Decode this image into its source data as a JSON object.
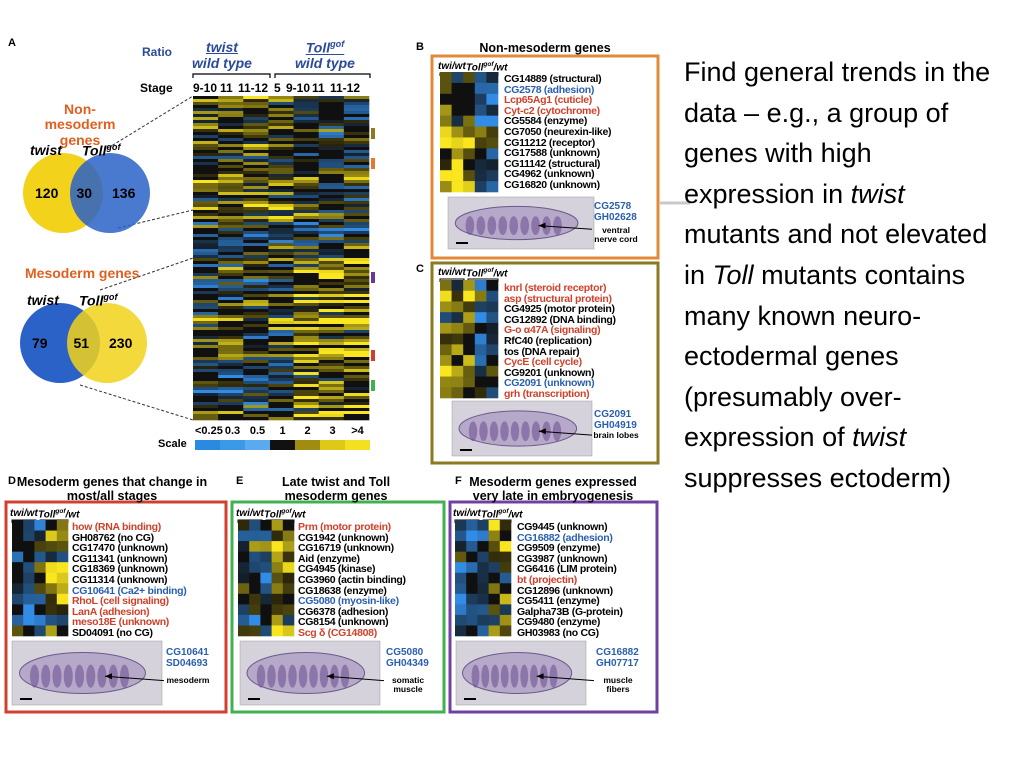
{
  "panel_a": {
    "label": "A",
    "ratio": "Ratio",
    "groups": [
      {
        "name": "twist",
        "sub": "wild type"
      },
      {
        "name": "Toll",
        "sup": "gof",
        "sub": "wild type"
      }
    ],
    "stage": "Stage",
    "stages": [
      "9-10",
      "11",
      "11-12",
      "5",
      "9-10",
      "11",
      "11-12"
    ],
    "venns": [
      {
        "title": "Non-mesoderm genes",
        "left": "twist",
        "right": "Toll",
        "right_sup": "gof",
        "counts": [
          120,
          30,
          136
        ]
      },
      {
        "title": "Mesoderm genes",
        "left": "twist",
        "right": "Toll",
        "right_sup": "gof",
        "counts": [
          79,
          51,
          230
        ]
      }
    ],
    "scale": {
      "label": "Scale",
      "ticks": [
        "<0.25",
        "0.3",
        "0.5",
        "1",
        "2",
        "3",
        ">4"
      ]
    }
  },
  "panels": [
    {
      "label": "B",
      "title": "Non-mesoderm genes",
      "col1": "twi/wt",
      "col2": "Toll",
      "col2_sup": "gof",
      "col2_tail": "/wt",
      "genes": [
        {
          "text": "CG14889 (structural)",
          "color": "#000000"
        },
        {
          "text": "CG2578 (adhesion)",
          "color": "#2a5fb0"
        },
        {
          "text": "Lcp65Ag1 (cuticle)",
          "color": "#d0402a"
        },
        {
          "text": "Cyt-c2 (cytochrome)",
          "color": "#d0402a"
        },
        {
          "text": "CG5584 (enzyme)",
          "color": "#000000"
        },
        {
          "text": "CG7050 (neurexin-like)",
          "color": "#000000"
        },
        {
          "text": "CG11212 (receptor)",
          "color": "#000000"
        },
        {
          "text": "CG17588 (unknown)",
          "color": "#000000"
        },
        {
          "text": "CG11142 (structural)",
          "color": "#000000"
        },
        {
          "text": "CG4962 (unknown)",
          "color": "#000000"
        },
        {
          "text": "CG16820 (unknown)",
          "color": "#000000"
        }
      ],
      "image_ids": [
        "CG2578",
        "GH02628"
      ],
      "image_note": "ventral nerve cord"
    },
    {
      "label": "C",
      "col1": "twi/wt",
      "col2": "Toll",
      "col2_sup": "gof",
      "col2_tail": "/wt",
      "genes": [
        {
          "text": "knrl (steroid receptor)",
          "color": "#d0402a"
        },
        {
          "text": "asp (structural protein)",
          "color": "#d0402a"
        },
        {
          "text": "CG4925 (motor protein)",
          "color": "#000000"
        },
        {
          "text": "CG12892 (DNA binding)",
          "color": "#000000"
        },
        {
          "text": "G-o α47A (signaling)",
          "color": "#d0402a"
        },
        {
          "text": "RfC40 (replication)",
          "color": "#000000"
        },
        {
          "text": "tos (DNA repair)",
          "color": "#000000"
        },
        {
          "text": "CycE (cell cycle)",
          "color": "#d0402a"
        },
        {
          "text": "CG9201 (unknown)",
          "color": "#000000"
        },
        {
          "text": "CG2091 (unknown)",
          "color": "#2a5fb0"
        },
        {
          "text": "grh (transcription)",
          "color": "#d0402a"
        }
      ],
      "image_ids": [
        "CG2091",
        "GH04919"
      ],
      "image_note": "brain lobes"
    },
    {
      "label": "D",
      "title": "Mesoderm genes that change in most/all stages",
      "col1": "twi/wt",
      "col2": "Toll",
      "col2_sup": "gof",
      "col2_tail": "/wt",
      "genes": [
        {
          "text": "how (RNA binding)",
          "color": "#d0402a"
        },
        {
          "text": "GH08762 (no CG)",
          "color": "#000000"
        },
        {
          "text": "CG17470 (unknown)",
          "color": "#000000"
        },
        {
          "text": "CG11341 (unknown)",
          "color": "#000000"
        },
        {
          "text": "CG18369 (unknown)",
          "color": "#000000"
        },
        {
          "text": "CG11314 (unknown)",
          "color": "#000000"
        },
        {
          "text": "CG10641 (Ca2+ binding)",
          "color": "#2a5fb0"
        },
        {
          "text": "RhoL (cell signaling)",
          "color": "#d0402a"
        },
        {
          "text": "LanA (adhesion)",
          "color": "#d0402a"
        },
        {
          "text": "meso18E (unknown)",
          "color": "#d0402a"
        },
        {
          "text": "SD04091 (no CG)",
          "color": "#000000"
        }
      ],
      "image_ids": [
        "CG10641",
        "SD04693"
      ],
      "image_note": "mesoderm"
    },
    {
      "label": "E",
      "title": "Late twist and Toll mesoderm genes",
      "col1": "twi/wt",
      "col2": "Toll",
      "col2_sup": "gof",
      "col2_tail": "/wt",
      "genes": [
        {
          "text": "Prm (motor protein)",
          "color": "#d0402a"
        },
        {
          "text": "CG1942 (unknown)",
          "color": "#000000"
        },
        {
          "text": "CG16719 (unknown)",
          "color": "#000000"
        },
        {
          "text": "Aid (enzyme)",
          "color": "#000000"
        },
        {
          "text": "CG4945 (kinase)",
          "color": "#000000"
        },
        {
          "text": "CG3960 (actin binding)",
          "color": "#000000"
        },
        {
          "text": "CG18638 (enzyme)",
          "color": "#000000"
        },
        {
          "text": "CG5080 (myosin-like)",
          "color": "#2a5fb0"
        },
        {
          "text": "CG6378 (adhesion)",
          "color": "#000000"
        },
        {
          "text": "CG8154 (unknown)",
          "color": "#000000"
        },
        {
          "text": "Scg δ (CG14808)",
          "color": "#d0402a"
        }
      ],
      "image_ids": [
        "CG5080",
        "GH04349"
      ],
      "image_note": "somatic muscle"
    },
    {
      "label": "F",
      "title": "Mesoderm genes expressed very late in embryogenesis",
      "col1": "twi/wt",
      "col2": "Toll",
      "col2_sup": "gof",
      "col2_tail": "/wt",
      "genes": [
        {
          "text": "CG9445 (unknown)",
          "color": "#000000"
        },
        {
          "text": "CG16882 (adhesion)",
          "color": "#2a5fb0"
        },
        {
          "text": "CG9509 (enzyme)",
          "color": "#000000"
        },
        {
          "text": "CG3987 (unknown)",
          "color": "#000000"
        },
        {
          "text": "CG6416 (LIM protein)",
          "color": "#000000"
        },
        {
          "text": "bt (projectin)",
          "color": "#d0402a"
        },
        {
          "text": "CG12896 (unknown)",
          "color": "#000000"
        },
        {
          "text": "CG5411 (enzyme)",
          "color": "#000000"
        },
        {
          "text": "Galpha73B (G-protein)",
          "color": "#000000"
        },
        {
          "text": "CG9480 (enzyme)",
          "color": "#000000"
        },
        {
          "text": "GH03983 (no CG)",
          "color": "#000000"
        }
      ],
      "image_ids": [
        "CG16882",
        "GH07717"
      ],
      "image_note": "muscle fibers"
    }
  ],
  "summary": [
    {
      "text": "Find general trends in the data – e.g., a group of genes with high expression in "
    },
    {
      "text": "twist",
      "italic": true
    },
    {
      "text": " mutants and not elevated in "
    },
    {
      "text": "Toll",
      "italic": true
    },
    {
      "text": " mutants contains many known neuro-ectodermal genes (presumably over-expression of "
    },
    {
      "text": "twist",
      "italic": true
    },
    {
      "text": " suppresses ectoderm)"
    }
  ]
}
